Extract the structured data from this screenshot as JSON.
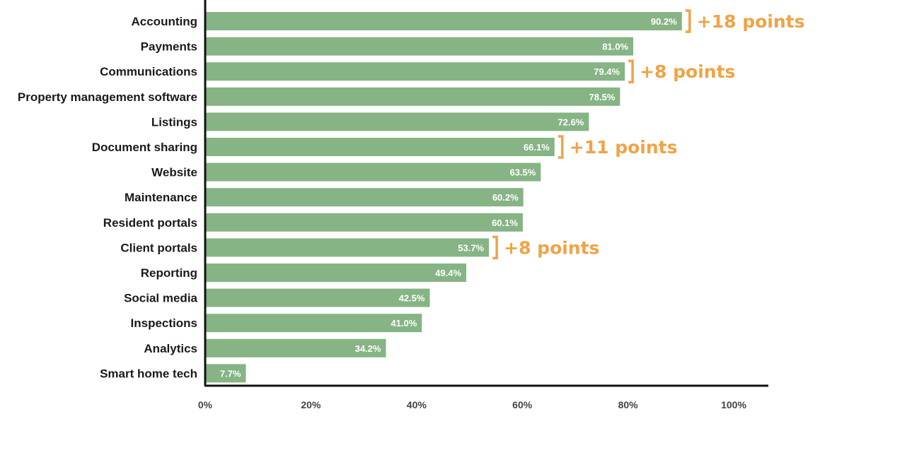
{
  "chart_data": {
    "type": "bar",
    "orientation": "horizontal",
    "title": "",
    "xlabel": "",
    "ylabel": "",
    "xlim": [
      0,
      100
    ],
    "grid": false,
    "legend": "none",
    "categories": [
      "Accounting",
      "Payments",
      "Communications",
      "Property management software",
      "Listings",
      "Document sharing",
      "Website",
      "Maintenance",
      "Resident portals",
      "Client portals",
      "Reporting",
      "Social media",
      "Inspections",
      "Analytics",
      "Smart home tech"
    ],
    "values": [
      90.2,
      81.0,
      79.4,
      78.5,
      72.6,
      66.1,
      63.5,
      60.2,
      60.1,
      53.7,
      49.4,
      42.5,
      41.0,
      34.2,
      7.7
    ],
    "value_labels": [
      "90.2%",
      "81.0%",
      "79.4%",
      "78.5%",
      "72.6%",
      "66.1%",
      "63.5%",
      "60.2%",
      "60.1%",
      "53.7%",
      "49.4%",
      "42.5%",
      "41.0%",
      "34.2%",
      "7.7%"
    ],
    "x_ticks": [
      0,
      20,
      40,
      60,
      80,
      100
    ],
    "x_tick_labels": [
      "0%",
      "20%",
      "40%",
      "60%",
      "80%",
      "100%"
    ],
    "annotations": [
      {
        "category": "Accounting",
        "text": "+18 points"
      },
      {
        "category": "Communications",
        "text": "+8 points"
      },
      {
        "category": "Document sharing",
        "text": "+11 points"
      },
      {
        "category": "Client portals",
        "text": "+8 points"
      }
    ],
    "colors": {
      "bar": "#86b485",
      "annotation": "#f0a346",
      "axis": "#111111",
      "value_text": "#ffffff"
    }
  }
}
